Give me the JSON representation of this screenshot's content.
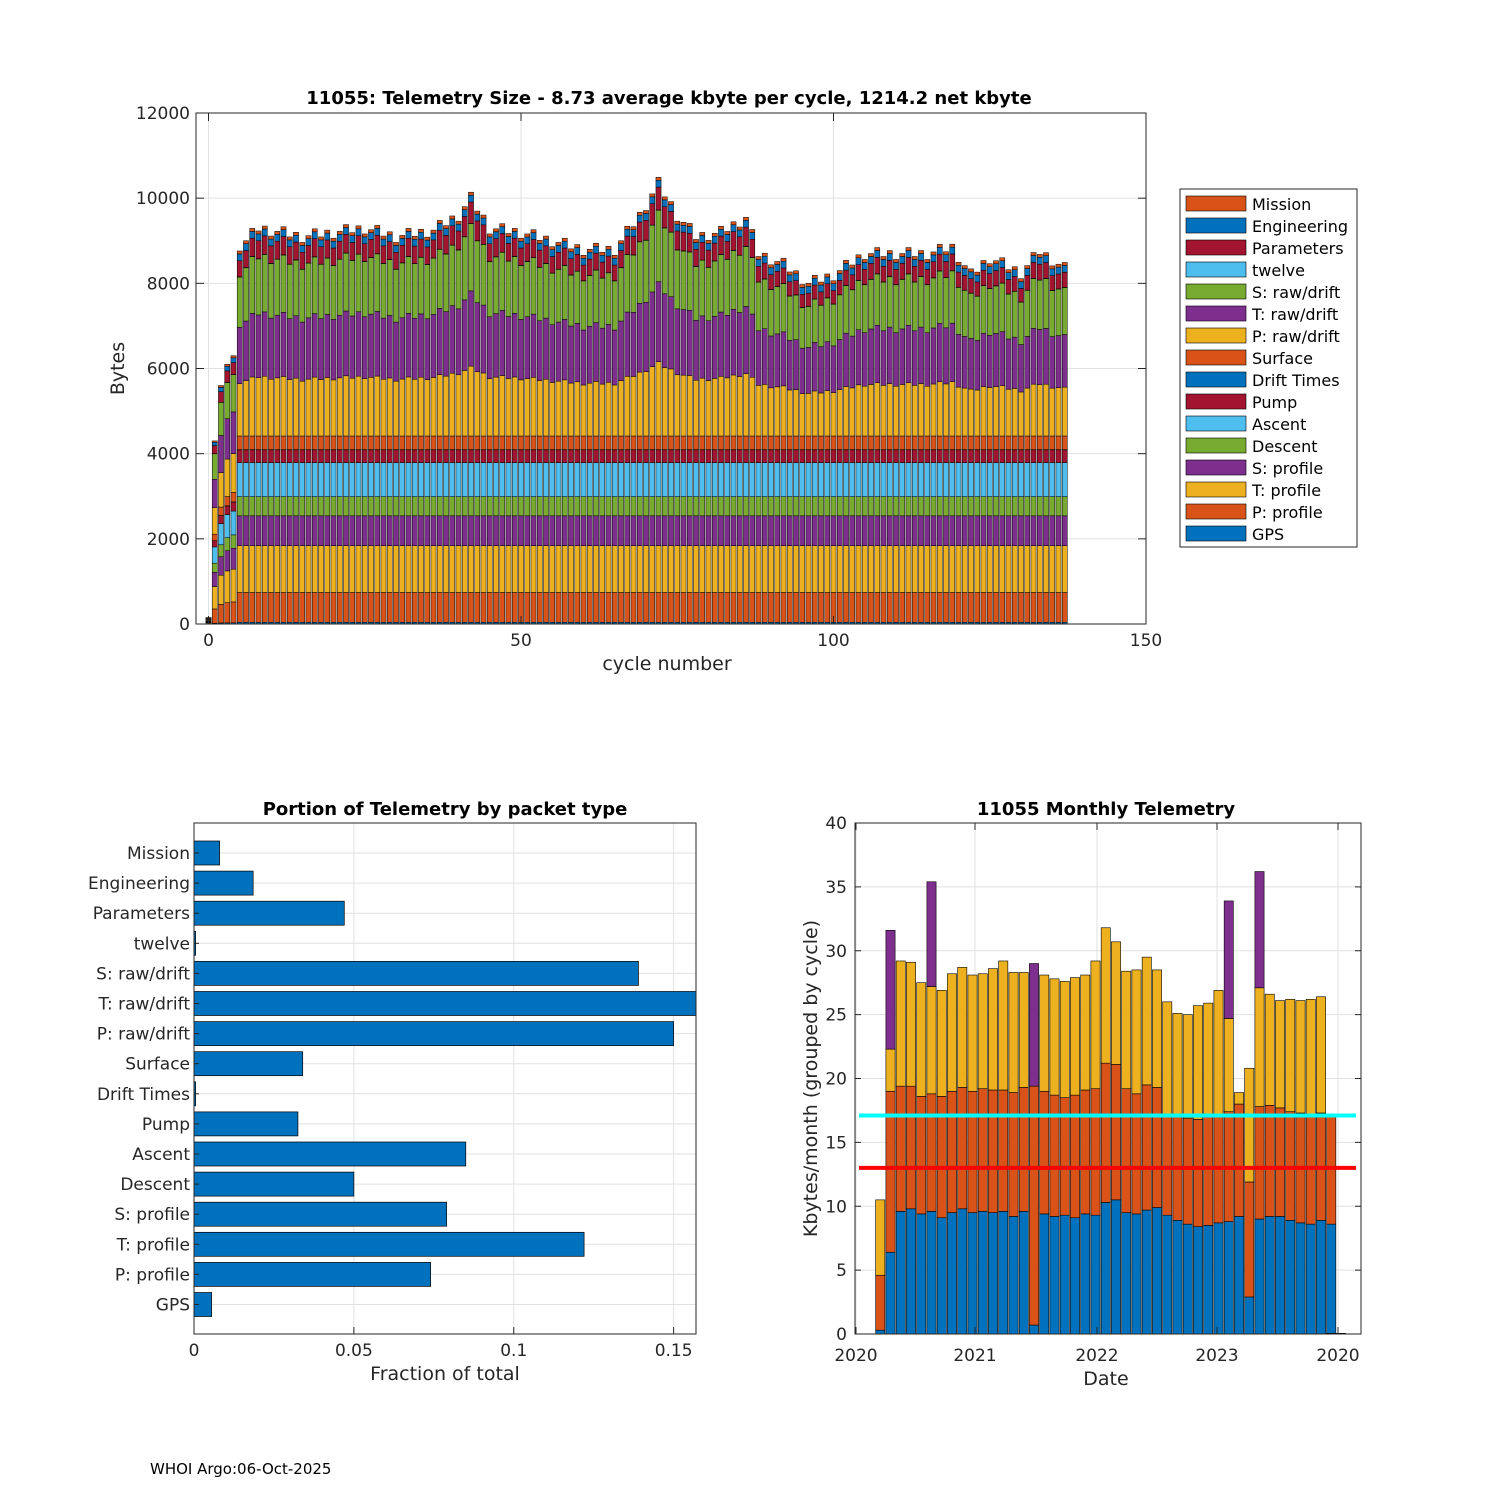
{
  "footer": "WHOI Argo:06-Oct-2025",
  "colors": {
    "blue": "#0072BD",
    "orange": "#D95319",
    "yellow": "#EDB120",
    "purple": "#7E2F8E",
    "green": "#77AC30",
    "cyan": "#4DBEEE",
    "maroon": "#A2142F",
    "grid": "#e1e1e1",
    "axis": "#262626",
    "ref_cyan": "#00FFFF",
    "ref_red": "#FF0000"
  },
  "chart_data": [
    {
      "id": "telemetry_per_cycle",
      "type": "bar",
      "stacked": true,
      "title": "11055: Telemetry Size - 8.73 average kbyte per cycle, 1214.2 net kbyte",
      "xlabel": "cycle number",
      "ylabel": "Bytes",
      "xlim": [
        -2,
        150
      ],
      "ylim": [
        0,
        12000
      ],
      "xticks": [
        0,
        50,
        100,
        150
      ],
      "yticks": [
        0,
        2000,
        4000,
        6000,
        8000,
        10000,
        12000
      ],
      "grid": true,
      "legend_position": "outside-right",
      "legend": [
        "Mission",
        "Engineering",
        "Parameters",
        "twelve",
        "S: raw/drift",
        "T: raw/drift",
        "P: raw/drift",
        "Surface",
        "Drift Times",
        "Pump",
        "Ascent",
        "Descent",
        "S: profile",
        "T: profile",
        "P: profile",
        "GPS"
      ],
      "series_colors": [
        "#D95319",
        "#0072BD",
        "#A2142F",
        "#4DBEEE",
        "#77AC30",
        "#7E2F8E",
        "#EDB120",
        "#D95319",
        "#0072BD",
        "#A2142F",
        "#4DBEEE",
        "#77AC30",
        "#7E2F8E",
        "#EDB120",
        "#D95319",
        "#0072BD"
      ],
      "cycles_range": [
        0,
        137
      ],
      "typical_layer_bytes": {
        "GPS": 40,
        "P: profile": 700,
        "T: profile": 1100,
        "S: profile": 700,
        "Descent": 450,
        "Ascent": 800,
        "Pump": 300,
        "Drift Times": 5,
        "Surface": 320,
        "P: raw/drift": 1300,
        "T: raw/drift": 1400,
        "S: raw/drift": 1250,
        "twelve": 5,
        "Parameters": 400,
        "Engineering": 160,
        "Mission": 70
      },
      "early_totals": [
        {
          "cycle": 0,
          "total": 150
        },
        {
          "cycle": 1,
          "total": 4300
        },
        {
          "cycle": 2,
          "total": 5600
        },
        {
          "cycle": 3,
          "total": 6100
        },
        {
          "cycle": 4,
          "total": 6300
        }
      ],
      "totals_samples": [
        {
          "cycle": 5,
          "total": 8900
        },
        {
          "cycle": 6,
          "total": 9000
        },
        {
          "cycle": 8,
          "total": 9300
        },
        {
          "cycle": 10,
          "total": 9250
        },
        {
          "cycle": 15,
          "total": 9100
        },
        {
          "cycle": 20,
          "total": 9200
        },
        {
          "cycle": 25,
          "total": 9300
        },
        {
          "cycle": 30,
          "total": 9100
        },
        {
          "cycle": 36,
          "total": 9250
        },
        {
          "cycle": 40,
          "total": 9600
        },
        {
          "cycle": 42,
          "total": 10000
        },
        {
          "cycle": 45,
          "total": 9300
        },
        {
          "cycle": 50,
          "total": 9200
        },
        {
          "cycle": 55,
          "total": 9000
        },
        {
          "cycle": 60,
          "total": 8800
        },
        {
          "cycle": 65,
          "total": 8800
        },
        {
          "cycle": 69,
          "total": 9600
        },
        {
          "cycle": 72,
          "total": 10350
        },
        {
          "cycle": 75,
          "total": 9600
        },
        {
          "cycle": 78,
          "total": 9100
        },
        {
          "cycle": 82,
          "total": 9200
        },
        {
          "cycle": 86,
          "total": 9550
        },
        {
          "cycle": 88,
          "total": 8700
        },
        {
          "cycle": 92,
          "total": 8450
        },
        {
          "cycle": 96,
          "total": 8000
        },
        {
          "cycle": 100,
          "total": 8200
        },
        {
          "cycle": 105,
          "total": 8700
        },
        {
          "cycle": 110,
          "total": 8700
        },
        {
          "cycle": 115,
          "total": 8700
        },
        {
          "cycle": 119,
          "total": 8850
        },
        {
          "cycle": 122,
          "total": 8200
        },
        {
          "cycle": 125,
          "total": 8600
        },
        {
          "cycle": 130,
          "total": 8250
        },
        {
          "cycle": 133,
          "total": 8750
        },
        {
          "cycle": 137,
          "total": 8350
        }
      ]
    },
    {
      "id": "portion_by_packet",
      "type": "bar",
      "orientation": "horizontal",
      "title": "Portion of Telemetry by packet type",
      "xlabel": "Fraction of total",
      "ylabel": "",
      "xlim": [
        0,
        0.157
      ],
      "xticks": [
        0,
        0.05,
        0.1,
        0.15
      ],
      "xtick_labels": [
        "0",
        "0.05",
        "0.1",
        "0.15"
      ],
      "grid": true,
      "categories": [
        "Mission",
        "Engineering",
        "Parameters",
        "twelve",
        "S: raw/drift",
        "T: raw/drift",
        "P: raw/drift",
        "Surface",
        "Drift Times",
        "Pump",
        "Ascent",
        "Descent",
        "S: profile",
        "T: profile",
        "P: profile",
        "GPS"
      ],
      "values": [
        0.008,
        0.0185,
        0.047,
        0.0005,
        0.139,
        0.158,
        0.15,
        0.034,
        0.0005,
        0.0325,
        0.085,
        0.05,
        0.079,
        0.122,
        0.074,
        0.0055
      ],
      "bar_color": "#0072BD"
    },
    {
      "id": "monthly_telemetry",
      "type": "bar",
      "stacked": true,
      "title": "11055 Monthly Telemetry",
      "xlabel": "Date",
      "ylabel": "Kbytes/month (grouped by cycle)",
      "ylim": [
        0,
        40
      ],
      "yticks": [
        0,
        5,
        10,
        15,
        20,
        25,
        30,
        35,
        40
      ],
      "xtick_labels": [
        "2020",
        "2021",
        "2022",
        "2023",
        "2020"
      ],
      "grid": true,
      "series": [
        {
          "name": "layer1",
          "color": "#0072BD",
          "values": [
            0,
            0.3,
            6.4,
            9.6,
            9.8,
            9.4,
            9.6,
            9.1,
            9.5,
            9.8,
            9.5,
            9.6,
            9.5,
            9.6,
            9.2,
            9.6,
            0.7,
            9.4,
            9.2,
            9.3,
            9.1,
            9.4,
            9.3,
            10.3,
            10.5,
            9.5,
            9.4,
            9.7,
            9.9,
            9.3,
            8.9,
            8.6,
            8.4,
            8.5,
            8.7,
            8.8,
            9.2,
            2.9,
            9.0,
            9.2,
            9.2,
            8.9,
            8.7,
            8.6,
            8.9,
            8.6
          ]
        },
        {
          "name": "layer2",
          "color": "#D95319",
          "values": [
            0,
            4.3,
            12.6,
            9.8,
            9.6,
            9.2,
            9.2,
            9.5,
            9.5,
            9.5,
            9.5,
            9.6,
            9.6,
            9.5,
            9.7,
            9.7,
            18.7,
            9.6,
            9.5,
            9.2,
            9.6,
            9.7,
            9.9,
            10.9,
            10.6,
            9.7,
            9.4,
            9.8,
            9.4,
            7.8,
            8.2,
            8.3,
            8.4,
            8.5,
            8.5,
            8.6,
            8.8,
            9.0,
            8.8,
            8.7,
            8.5,
            8.5,
            8.6,
            8.5,
            8.4,
            8.6
          ]
        },
        {
          "name": "layer3",
          "color": "#EDB120",
          "values": [
            0,
            5.9,
            3.3,
            9.8,
            9.7,
            8.9,
            8.4,
            8.3,
            9.2,
            9.4,
            9.1,
            9.0,
            9.5,
            10.1,
            9.4,
            9.0,
            0,
            9.1,
            9.1,
            9.1,
            9.2,
            9.0,
            10.0,
            10.6,
            9.6,
            9.2,
            9.7,
            10.0,
            9.2,
            8.9,
            8.0,
            8.1,
            8.9,
            8.9,
            9.7,
            7.3,
            0.9,
            8.9,
            9.3,
            8.7,
            8.4,
            8.8,
            8.8,
            9.1,
            9.1,
            0
          ]
        },
        {
          "name": "layer4",
          "color": "#7E2F8E",
          "values": [
            0,
            0,
            9.3,
            0,
            0,
            0,
            8.2,
            0,
            0,
            0,
            0,
            0,
            0,
            0,
            0,
            0,
            9.6,
            0,
            0,
            0,
            0,
            0,
            0,
            0,
            0,
            0,
            0,
            0,
            0,
            0,
            0,
            0,
            0,
            0,
            0,
            9.2,
            0,
            0,
            9.1,
            0,
            0,
            0,
            0,
            0,
            0,
            0
          ]
        }
      ],
      "reference_lines": [
        {
          "name": "cyan-line",
          "y": 17.1,
          "color": "#00FFFF"
        },
        {
          "name": "red-line",
          "y": 13.0,
          "color": "#FF0000"
        }
      ]
    }
  ]
}
